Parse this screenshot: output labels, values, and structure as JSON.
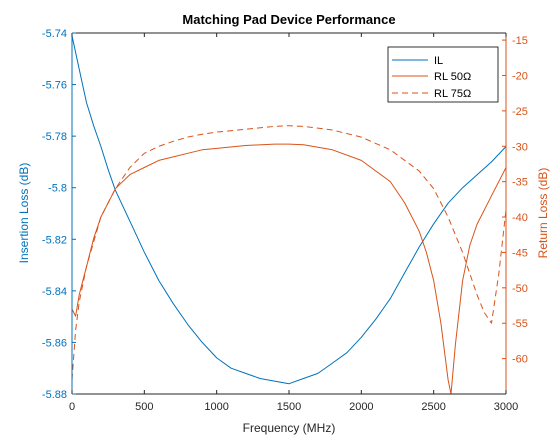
{
  "chart_data": {
    "type": "line",
    "title": "Matching Pad Device Performance",
    "xlabel": "Frequency (MHz)",
    "ylabel_left": "Insertion Loss (dB)",
    "ylabel_right": "Return Loss (dB)",
    "xlim": [
      0,
      3000
    ],
    "ylim_left": [
      -5.88,
      -5.74
    ],
    "ylim_right": [
      -65,
      -14
    ],
    "x_ticks": [
      "0",
      "500",
      "1000",
      "1500",
      "2000",
      "2500",
      "3000"
    ],
    "y_left_ticks": [
      "-5.74",
      "-5.76",
      "-5.78",
      "-5.8",
      "-5.82",
      "-5.84",
      "-5.86",
      "-5.88"
    ],
    "y_right_ticks": [
      "-15",
      "-20",
      "-25",
      "-30",
      "-35",
      "-40",
      "-45",
      "-50",
      "-55",
      "-60"
    ],
    "legend_position": "top-right",
    "grid": false,
    "colors": {
      "il": "#0072BD",
      "rl": "#D95319",
      "axis_left": "#0072BD",
      "axis_right": "#D95319"
    },
    "series": [
      {
        "name": "IL",
        "axis": "left",
        "style": "solid",
        "x": [
          0,
          50,
          100,
          150,
          200,
          250,
          300,
          400,
          500,
          600,
          700,
          800,
          900,
          1000,
          1100,
          1200,
          1300,
          1400,
          1500,
          1600,
          1700,
          1800,
          1900,
          2000,
          2100,
          2200,
          2300,
          2400,
          2500,
          2600,
          2700,
          2800,
          2900,
          3000
        ],
        "values": [
          -5.741,
          -5.754,
          -5.767,
          -5.776,
          -5.784,
          -5.793,
          -5.801,
          -5.813,
          -5.825,
          -5.836,
          -5.845,
          -5.853,
          -5.86,
          -5.866,
          -5.87,
          -5.872,
          -5.874,
          -5.875,
          -5.876,
          -5.874,
          -5.872,
          -5.868,
          -5.864,
          -5.858,
          -5.851,
          -5.843,
          -5.833,
          -5.823,
          -5.814,
          -5.806,
          -5.8,
          -5.795,
          -5.79,
          -5.784
        ]
      },
      {
        "name": "RL 50Ω",
        "axis": "right",
        "style": "solid",
        "x": [
          0,
          25,
          50,
          75,
          100,
          150,
          200,
          300,
          400,
          500,
          600,
          700,
          800,
          900,
          1000,
          1200,
          1400,
          1500,
          1600,
          1800,
          2000,
          2100,
          2200,
          2300,
          2400,
          2450,
          2500,
          2550,
          2600,
          2620,
          2650,
          2700,
          2750,
          2800,
          2900,
          3000
        ],
        "values": [
          -53,
          -54,
          -51,
          -49,
          -47,
          -43,
          -40,
          -36,
          -34,
          -33,
          -32,
          -31.5,
          -31,
          -30.5,
          -30.3,
          -29.9,
          -29.7,
          -29.7,
          -29.8,
          -30.5,
          -32,
          -33.5,
          -35,
          -38,
          -42,
          -45,
          -49,
          -55,
          -63,
          -65,
          -58,
          -49,
          -44,
          -41,
          -37,
          -33
        ]
      },
      {
        "name": "RL 75Ω",
        "axis": "right",
        "style": "dashed",
        "x": [
          0,
          25,
          50,
          100,
          200,
          300,
          400,
          500,
          600,
          700,
          800,
          900,
          1000,
          1200,
          1400,
          1500,
          1600,
          1800,
          2000,
          2200,
          2400,
          2500,
          2600,
          2700,
          2750,
          2800,
          2850,
          2900,
          2950,
          3000
        ],
        "values": [
          -63,
          -56,
          -52,
          -47,
          -40,
          -36,
          -33,
          -31,
          -30,
          -29.3,
          -28.7,
          -28.3,
          -28,
          -27.6,
          -27.2,
          -27.1,
          -27.2,
          -27.7,
          -28.7,
          -30.5,
          -33.5,
          -36,
          -40,
          -45,
          -48,
          -51,
          -53.5,
          -55,
          -48,
          -39
        ]
      }
    ]
  }
}
